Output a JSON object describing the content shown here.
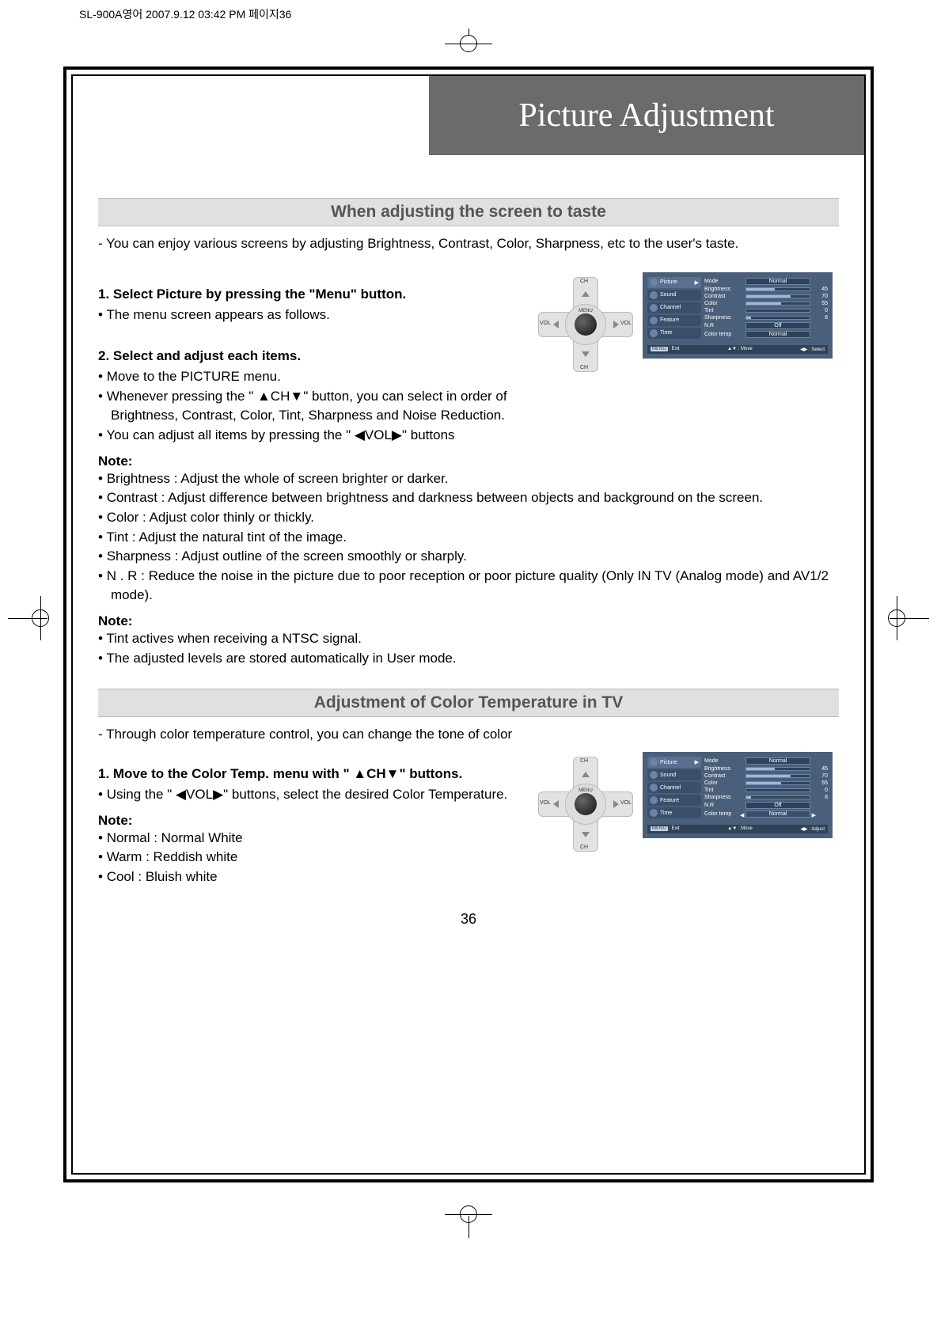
{
  "header_meta": "SL-900A영어   2007.9.12 03:42 PM  페이지36",
  "page_title": "Picture Adjustment",
  "section1": {
    "heading": "When adjusting the screen to taste",
    "intro": "- You can enjoy various screens by adjusting Brightness, Contrast, Color, Sharpness, etc to the user's taste.",
    "step1_head": "1. Select Picture by pressing the \"Menu\" button.",
    "step1_b1": "The menu screen appears as follows.",
    "step2_head": "2. Select and adjust each items.",
    "step2_b1": "Move to the PICTURE menu.",
    "step2_b2": "Whenever pressing the \" ▲CH▼\" button, you can select in order of Brightness, Contrast, Color, Tint, Sharpness and Noise Reduction.",
    "step2_b3": "You can adjust all items by pressing the \" ◀VOL▶\" buttons",
    "note1_head": "Note:",
    "note1_b1": "Brightness : Adjust the whole of screen brighter or darker.",
    "note1_b2": "Contrast : Adjust difference between brightness and darkness between objects and background on the screen.",
    "note1_b3": "Color : Adjust color thinly or thickly.",
    "note1_b4": "Tint : Adjust the natural tint of the image.",
    "note1_b5": "Sharpness : Adjust outline of the screen smoothly or sharply.",
    "note1_b6": "N . R : Reduce the noise in the picture due to poor reception or poor picture quality (Only IN TV (Analog mode) and AV1/2 mode).",
    "note2_head": "Note:",
    "note2_b1": "Tint actives when receiving a NTSC signal.",
    "note2_b2": "The adjusted levels are stored automatically in User mode."
  },
  "section2": {
    "heading": "Adjustment of Color Temperature in TV",
    "intro": "- Through color temperature control, you can change the tone of color",
    "step1_head": "1. Move to the Color Temp. menu with \" ▲CH▼\" buttons.",
    "step1_b1": "Using the \" ◀VOL▶\" buttons, select the desired Color Temperature.",
    "note_head": "Note:",
    "note_b1": "Normal : Normal White",
    "note_b2": "Warm : Reddish white",
    "note_b3": "Cool : Bluish white"
  },
  "dpad": {
    "up": "CH",
    "down": "CH",
    "left": "VOL",
    "right": "VOL",
    "center": "MENU"
  },
  "osd1": {
    "sidebar": [
      "Picture",
      "Sound",
      "Channel",
      "Feature",
      "Time"
    ],
    "rows": [
      {
        "label": "Mode",
        "type": "select",
        "value": "Normal"
      },
      {
        "label": "Brightness",
        "type": "bar",
        "value": 45,
        "max": 100
      },
      {
        "label": "Contrast",
        "type": "bar",
        "value": 70,
        "max": 100
      },
      {
        "label": "Color",
        "type": "bar",
        "value": 55,
        "max": 100
      },
      {
        "label": "Tint",
        "type": "bar",
        "value": 0,
        "max": 100
      },
      {
        "label": "Sharpness",
        "type": "bar",
        "value": 8,
        "max": 100
      },
      {
        "label": "N.R",
        "type": "select",
        "value": "Off"
      },
      {
        "label": "Color temp",
        "type": "select",
        "value": "Normal"
      }
    ],
    "footer": {
      "exit": "MENU : Exit",
      "move": "▲▼ : Move",
      "action": "◀▶ : Select"
    }
  },
  "osd2": {
    "sidebar": [
      "Picture",
      "Sound",
      "Channel",
      "Feature",
      "Time"
    ],
    "rows": [
      {
        "label": "Mode",
        "type": "select",
        "value": "Normal"
      },
      {
        "label": "Brightness",
        "type": "bar",
        "value": 45,
        "max": 100
      },
      {
        "label": "Contrast",
        "type": "bar",
        "value": 70,
        "max": 100
      },
      {
        "label": "Color",
        "type": "bar",
        "value": 55,
        "max": 100
      },
      {
        "label": "Tint",
        "type": "bar",
        "value": 0,
        "max": 100
      },
      {
        "label": "Sharpness",
        "type": "bar",
        "value": 8,
        "max": 100
      },
      {
        "label": "N.R",
        "type": "select",
        "value": "Off"
      },
      {
        "label": "Color temp",
        "type": "select-hl",
        "value": "Normal"
      }
    ],
    "footer": {
      "exit": "MENU : Exit",
      "move": "▲▼ : Move",
      "action": "◀▶ : Adjust"
    }
  },
  "page_number": "36",
  "colors": {
    "title_bg": "#6b6b6b",
    "heading_bg": "#e0e0e0",
    "osd_bg": "#4a5f7a",
    "osd_dark": "#2f4258",
    "osd_item": "#3a4f6a",
    "osd_fill": "#9fb8d8"
  }
}
